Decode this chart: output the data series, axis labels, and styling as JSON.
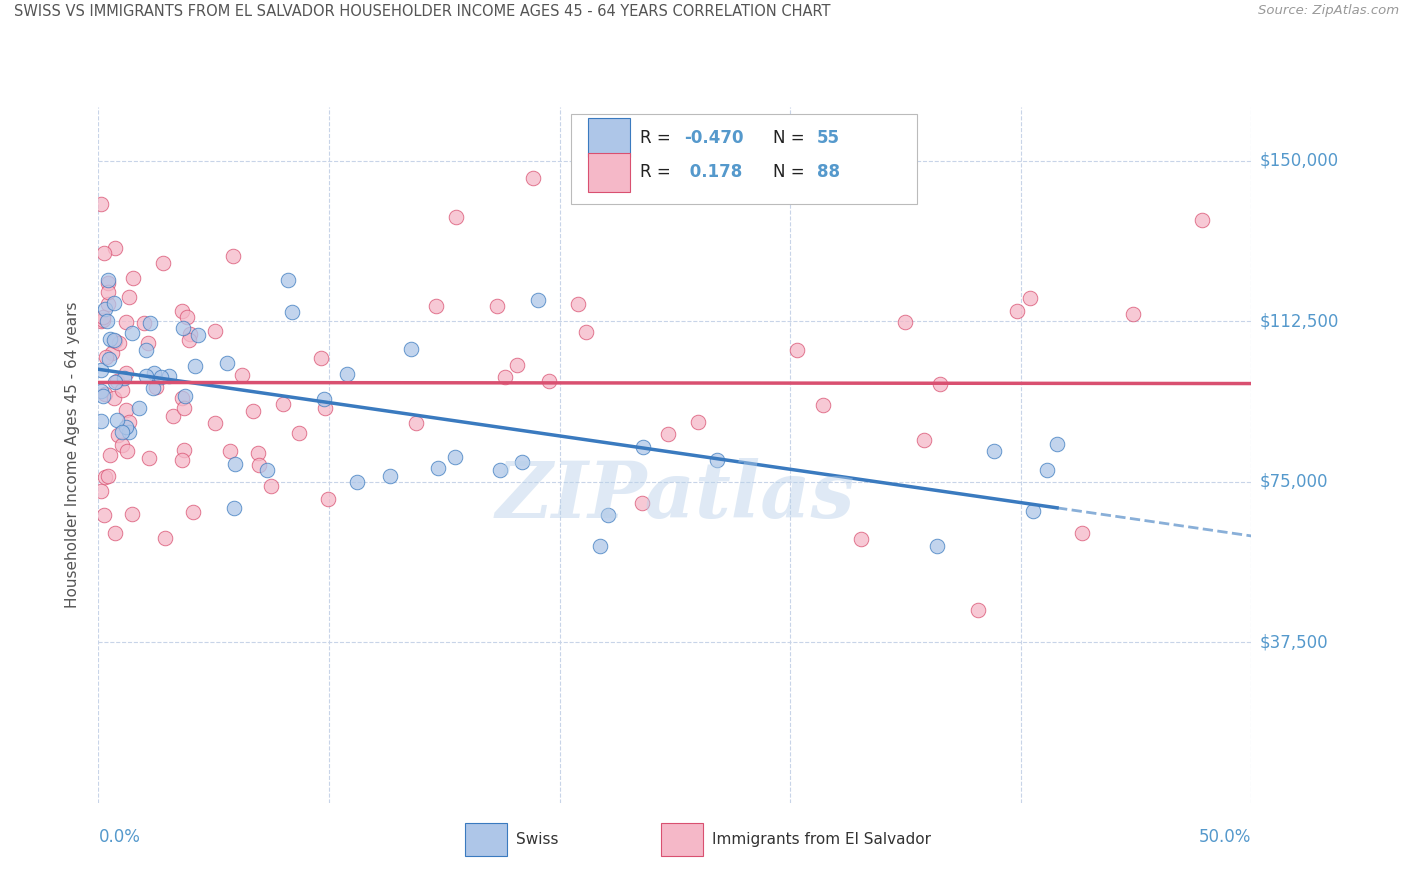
{
  "title": "SWISS VS IMMIGRANTS FROM EL SALVADOR HOUSEHOLDER INCOME AGES 45 - 64 YEARS CORRELATION CHART",
  "source": "Source: ZipAtlas.com",
  "ylabel": "Householder Income Ages 45 - 64 years",
  "ytick_labels": [
    "$37,500",
    "$75,000",
    "$112,500",
    "$150,000"
  ],
  "ytick_values": [
    37500,
    75000,
    112500,
    150000
  ],
  "ymin": 0,
  "ymax": 162500,
  "xmin": 0.0,
  "xmax": 0.5,
  "legend_swiss_R": "-0.470",
  "legend_swiss_N": "55",
  "legend_salv_R": "0.178",
  "legend_salv_N": "88",
  "swiss_color": "#aec6e8",
  "salv_color": "#f5b8c8",
  "line_swiss_color": "#3a7abf",
  "line_salv_color": "#d95070",
  "watermark": "ZIPatlas",
  "background_color": "#ffffff",
  "grid_color": "#c8d4e8",
  "title_color": "#555555",
  "ylabel_color": "#555555",
  "tick_color": "#5599cc",
  "source_color": "#999999"
}
